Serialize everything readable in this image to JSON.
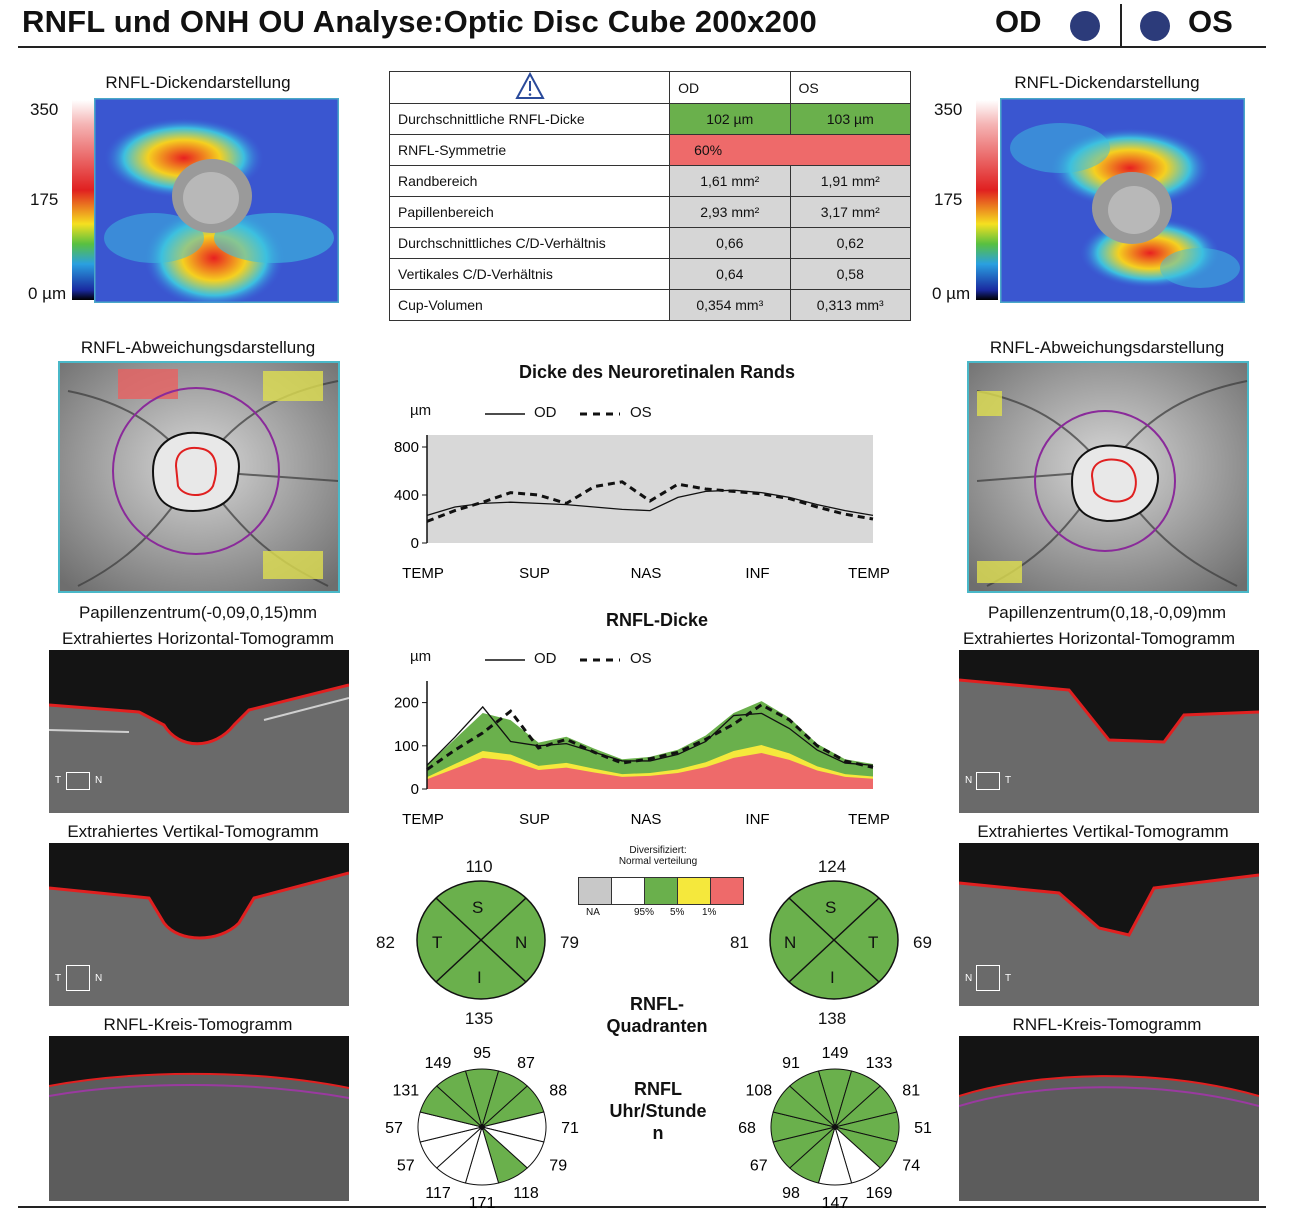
{
  "header": {
    "title": "RNFL und ONH OU Analyse:Optic Disc Cube 200x200",
    "od": "OD",
    "os": "OS"
  },
  "thickness_map": {
    "title": "RNFL-Dickendarstellung",
    "scale": [
      "350",
      "175",
      "0 µm"
    ]
  },
  "summary_table": {
    "col_od": "OD",
    "col_os": "OS",
    "rows": [
      {
        "label": "Durchschnittliche RNFL-Dicke",
        "od": "102 µm",
        "os": "103 µm"
      },
      {
        "label": "RNFL-Symmetrie",
        "od": "60%",
        "os": ""
      },
      {
        "label": "Randbereich",
        "od": "1,61 mm²",
        "os": "1,91 mm²"
      },
      {
        "label": "Papillenbereich",
        "od": "2,93 mm²",
        "os": "3,17 mm²"
      },
      {
        "label": "Durchschnittliches C/D-Verhältnis",
        "od": "0,66",
        "os": "0,62"
      },
      {
        "label": "Vertikales C/D-Verhältnis",
        "od": "0,64",
        "os": "0,58"
      },
      {
        "label": "Cup-Volumen",
        "od": "0,354 mm³",
        "os": "0,313 mm³"
      }
    ],
    "colors": {
      "green": "#6ab04c",
      "red": "#ee6a6a",
      "grey": "#d6d6d6"
    }
  },
  "deviation": {
    "title": "RNFL-Abweichungsdarstellung",
    "od_center": "Papillenzentrum(-0,09,0,15)mm",
    "os_center": "Papillenzentrum(0,18,-0,09)mm"
  },
  "tomograms": {
    "horizontal": "Extrahiertes Horizontal-Tomogramm",
    "vertical": "Extrahiertes Vertikal-Tomogramm",
    "circle": "RNFL-Kreis-Tomogramm",
    "od_h": [
      "T",
      "N"
    ],
    "os_h": [
      "N",
      "T"
    ],
    "od_v": [
      "T",
      "N"
    ],
    "os_v": [
      "N",
      "T"
    ]
  },
  "rim_chart": {
    "title": "Dicke des Neuroretinalen Rands",
    "unit": "µm",
    "legend": [
      "OD",
      "OS"
    ]
  },
  "rnfl_chart": {
    "title": "RNFL-Dicke",
    "unit": "µm",
    "legend": [
      "OD",
      "OS"
    ]
  },
  "legend_box": {
    "title_line1": "Diversifiziert:",
    "title_line2": "Normal verteilung",
    "labels": [
      "NA",
      "95%",
      "5%",
      "1%"
    ],
    "colors": [
      "#c8c8c8",
      "#ffffff",
      "#6ab04c",
      "#f5e83c",
      "#ee6a6a"
    ]
  },
  "quadrants": {
    "title_line1": "RNFL-",
    "title_line2": "Quadranten",
    "od": {
      "S": "110",
      "T": "82",
      "N": "79",
      "I": "135",
      "letters": [
        "S",
        "T",
        "N",
        "I"
      ]
    },
    "os": {
      "S": "124",
      "N": "81",
      "T": "69",
      "I": "138",
      "letters": [
        "S",
        "N",
        "T",
        "I"
      ]
    }
  },
  "clock": {
    "title_line1": "RNFL",
    "title_line2": "Uhr/Stunde",
    "title_line3": "n",
    "od": [
      "95",
      "87",
      "88",
      "71",
      "79",
      "118",
      "171",
      "117",
      "57",
      "57",
      "131",
      "149"
    ],
    "os": [
      "149",
      "133",
      "81",
      "51",
      "74",
      "169",
      "147",
      "98",
      "67",
      "68",
      "108",
      "91"
    ]
  },
  "chart_data": [
    {
      "type": "line",
      "title": "Dicke des Neuroretinalen Rands",
      "ylabel": "µm",
      "xticks": [
        "TEMP",
        "SUP",
        "NAS",
        "INF",
        "TEMP"
      ],
      "yticks": [
        0,
        400,
        800
      ],
      "ylim": [
        0,
        900
      ],
      "series": [
        {
          "name": "OD",
          "style": "solid",
          "values": [
            230,
            300,
            330,
            340,
            330,
            320,
            300,
            280,
            270,
            380,
            430,
            440,
            420,
            380,
            320,
            270,
            230
          ]
        },
        {
          "name": "OS",
          "style": "dashed",
          "values": [
            180,
            270,
            340,
            420,
            400,
            330,
            470,
            510,
            350,
            490,
            450,
            430,
            410,
            370,
            300,
            240,
            200
          ]
        }
      ]
    },
    {
      "type": "line",
      "title": "RNFL-Dicke",
      "ylabel": "µm",
      "xticks": [
        "TEMP",
        "SUP",
        "NAS",
        "INF",
        "TEMP"
      ],
      "yticks": [
        0,
        100,
        200
      ],
      "ylim": [
        0,
        250
      ],
      "series": [
        {
          "name": "OD",
          "style": "solid",
          "values": [
            55,
            120,
            190,
            110,
            100,
            105,
            85,
            65,
            65,
            80,
            110,
            170,
            175,
            140,
            90,
            60,
            55
          ]
        },
        {
          "name": "OS",
          "style": "dashed",
          "values": [
            45,
            90,
            130,
            180,
            95,
            115,
            85,
            60,
            70,
            85,
            115,
            150,
            195,
            160,
            100,
            65,
            50
          ]
        }
      ]
    }
  ]
}
